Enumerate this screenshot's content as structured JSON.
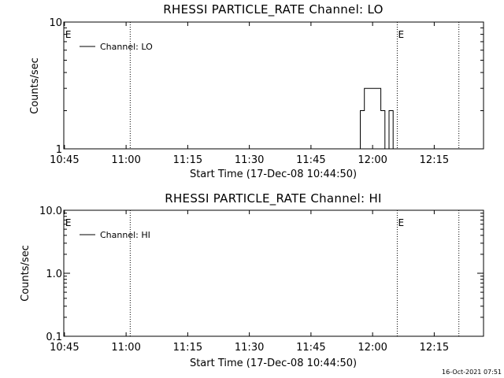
{
  "chart_data": [
    {
      "type": "line",
      "title": "RHESSI PARTICLE_RATE Channel: LO",
      "xlabel": "Start Time (17-Dec-08 10:44:50)",
      "ylabel": "Counts/sec",
      "yscale": "log",
      "xlim": [
        "10:45",
        "12:27"
      ],
      "ylim": [
        1,
        10
      ],
      "x_ticks": [
        "10:45",
        "11:00",
        "11:15",
        "11:30",
        "11:45",
        "12:00",
        "12:15"
      ],
      "y_ticks": [
        "1",
        "10"
      ],
      "legend": {
        "position": "top-left",
        "entries": [
          "Channel: LO"
        ]
      },
      "event_lines": [
        {
          "time": "10:45",
          "label": "E"
        },
        {
          "time": "11:01",
          "label": ""
        },
        {
          "time": "12:06",
          "label": "E"
        },
        {
          "time": "12:21",
          "label": ""
        }
      ],
      "series": [
        {
          "name": "Channel: LO",
          "style": "step",
          "x": [
            "11:57",
            "11:58",
            "11:59",
            "12:00",
            "12:01",
            "12:02",
            "12:03",
            "12:04",
            "12:05",
            "12:06"
          ],
          "y": [
            2,
            3,
            3,
            3,
            3,
            2,
            1,
            2,
            1,
            1
          ]
        }
      ],
      "grid": false
    },
    {
      "type": "line",
      "title": "RHESSI PARTICLE_RATE Channel: HI",
      "xlabel": "Start Time (17-Dec-08 10:44:50)",
      "ylabel": "Counts/sec",
      "yscale": "log",
      "xlim": [
        "10:45",
        "12:27"
      ],
      "ylim": [
        0.1,
        10
      ],
      "x_ticks": [
        "10:45",
        "11:00",
        "11:15",
        "11:30",
        "11:45",
        "12:00",
        "12:15"
      ],
      "y_ticks": [
        "0.1",
        "1.0",
        "10.0"
      ],
      "legend": {
        "position": "top-left",
        "entries": [
          "Channel: HI"
        ]
      },
      "event_lines": [
        {
          "time": "10:45",
          "label": "E"
        },
        {
          "time": "11:01",
          "label": ""
        },
        {
          "time": "12:06",
          "label": "E"
        },
        {
          "time": "12:21",
          "label": ""
        }
      ],
      "series": [
        {
          "name": "Channel: HI",
          "style": "step",
          "x": [],
          "y": []
        }
      ],
      "grid": false
    }
  ],
  "footer": {
    "timestamp": "16-Oct-2021 07:51"
  }
}
